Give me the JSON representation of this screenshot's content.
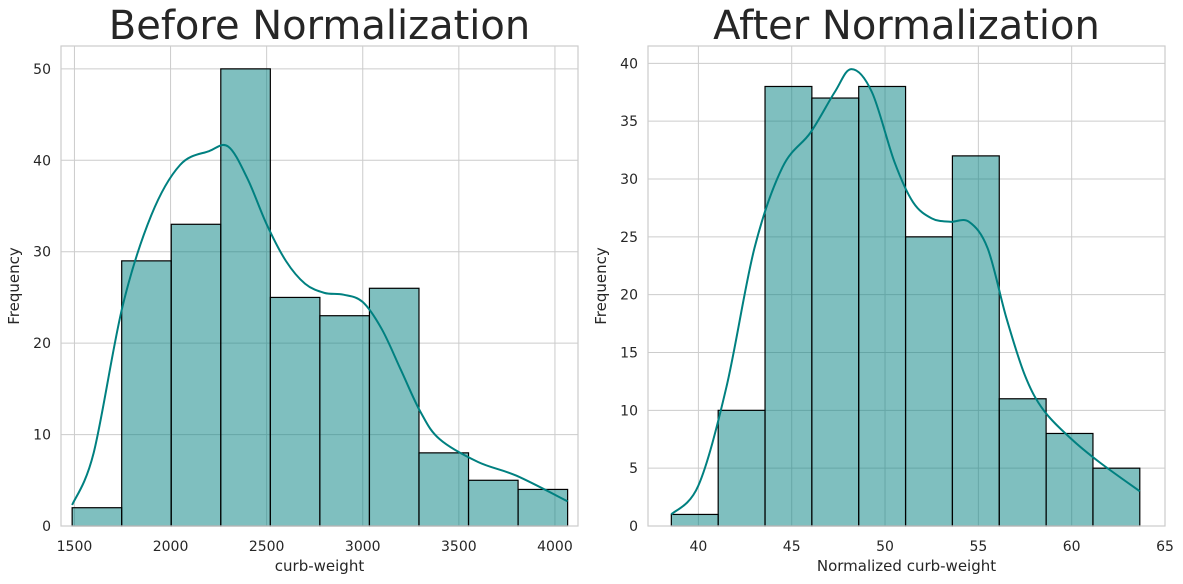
{
  "chart_data": [
    {
      "type": "histogram",
      "title": "Before Normalization",
      "xlabel": "curb-weight",
      "ylabel": "Frequency",
      "xlim": [
        1430,
        4120
      ],
      "ylim": [
        0,
        52.5
      ],
      "xticks": [
        1500,
        2000,
        2500,
        3000,
        3500,
        4000
      ],
      "yticks": [
        0,
        10,
        20,
        30,
        40,
        50
      ],
      "bin_edges": [
        1488,
        1745.8,
        2003.6,
        2261.4,
        2519.2,
        2777,
        3034.8,
        3292.6,
        3550.4,
        3808.2,
        4066
      ],
      "counts": [
        2,
        29,
        33,
        50,
        25,
        23,
        26,
        8,
        5,
        4
      ],
      "kde": [
        [
          1488,
          2.3
        ],
        [
          1600,
          8
        ],
        [
          1750,
          24
        ],
        [
          1900,
          34
        ],
        [
          2050,
          39.5
        ],
        [
          2200,
          41
        ],
        [
          2300,
          41.5
        ],
        [
          2400,
          38
        ],
        [
          2500,
          33
        ],
        [
          2600,
          29
        ],
        [
          2700,
          26.5
        ],
        [
          2800,
          25.5
        ],
        [
          2900,
          25.3
        ],
        [
          3000,
          24.5
        ],
        [
          3100,
          21.5
        ],
        [
          3200,
          17
        ],
        [
          3300,
          12.5
        ],
        [
          3400,
          9.5
        ],
        [
          3600,
          7
        ],
        [
          3800,
          5.5
        ],
        [
          4066,
          2.7
        ]
      ],
      "grid": true,
      "color": "#008080"
    },
    {
      "type": "histogram",
      "title": "After Normalization",
      "xlabel": "Normalized curb-weight",
      "ylabel": "Frequency",
      "xlim": [
        37.3,
        65
      ],
      "ylim": [
        0,
        41.5
      ],
      "xticks": [
        40,
        45,
        50,
        55,
        60,
        65
      ],
      "yticks": [
        0,
        5,
        10,
        15,
        20,
        25,
        30,
        35,
        40
      ],
      "bin_edges": [
        38.55,
        41.06,
        43.57,
        46.08,
        48.59,
        51.1,
        53.61,
        56.12,
        58.63,
        61.14,
        63.65
      ],
      "counts": [
        1,
        10,
        38,
        37,
        38,
        25,
        32,
        11,
        8,
        5
      ],
      "kde": [
        [
          38.55,
          1
        ],
        [
          40,
          3.5
        ],
        [
          41.5,
          12
        ],
        [
          43,
          24
        ],
        [
          44.5,
          31
        ],
        [
          46,
          34
        ],
        [
          47.3,
          37.5
        ],
        [
          48.2,
          39.5
        ],
        [
          49.3,
          37.5
        ],
        [
          50.5,
          31.5
        ],
        [
          51.5,
          28
        ],
        [
          52.5,
          26.6
        ],
        [
          53.5,
          26.3
        ],
        [
          54.5,
          26.3
        ],
        [
          55.5,
          24
        ],
        [
          56.5,
          18
        ],
        [
          57.5,
          13
        ],
        [
          58.5,
          10
        ],
        [
          60,
          7.5
        ],
        [
          61.5,
          5.5
        ],
        [
          63.65,
          3
        ]
      ],
      "grid": true,
      "color": "#008080"
    }
  ]
}
